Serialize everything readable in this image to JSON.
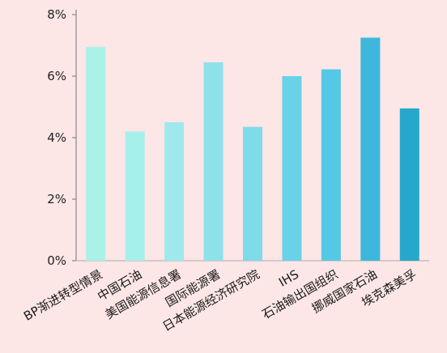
{
  "chart_data": {
    "type": "bar",
    "title": "",
    "xlabel": "",
    "ylabel": "",
    "categories": [
      "BP渐进转型情景",
      "中国石油",
      "美国能源信息署",
      "国际能源署",
      "日本能源经济研究院",
      "IHS",
      "石油输出国组织",
      "挪威国家石油",
      "埃克森美孚"
    ],
    "values": [
      6.95,
      4.2,
      4.5,
      6.45,
      4.35,
      6.0,
      6.22,
      7.25,
      4.95
    ],
    "ylim": [
      0,
      8
    ],
    "yticks": [
      0,
      2,
      4,
      6,
      8
    ],
    "ytick_labels": [
      "0%",
      "2%",
      "4%",
      "6%",
      "8%"
    ],
    "grid": false,
    "legend": "none",
    "bar_colors": [
      "#aaf1e8",
      "#a6f0ec",
      "#9de9ec",
      "#8de2ea",
      "#7ddbea",
      "#69d2e8",
      "#55c8e5",
      "#3db8dc",
      "#26a8cc"
    ],
    "highlight_label_color": "#2a7fd4",
    "highlight_index": 0
  }
}
